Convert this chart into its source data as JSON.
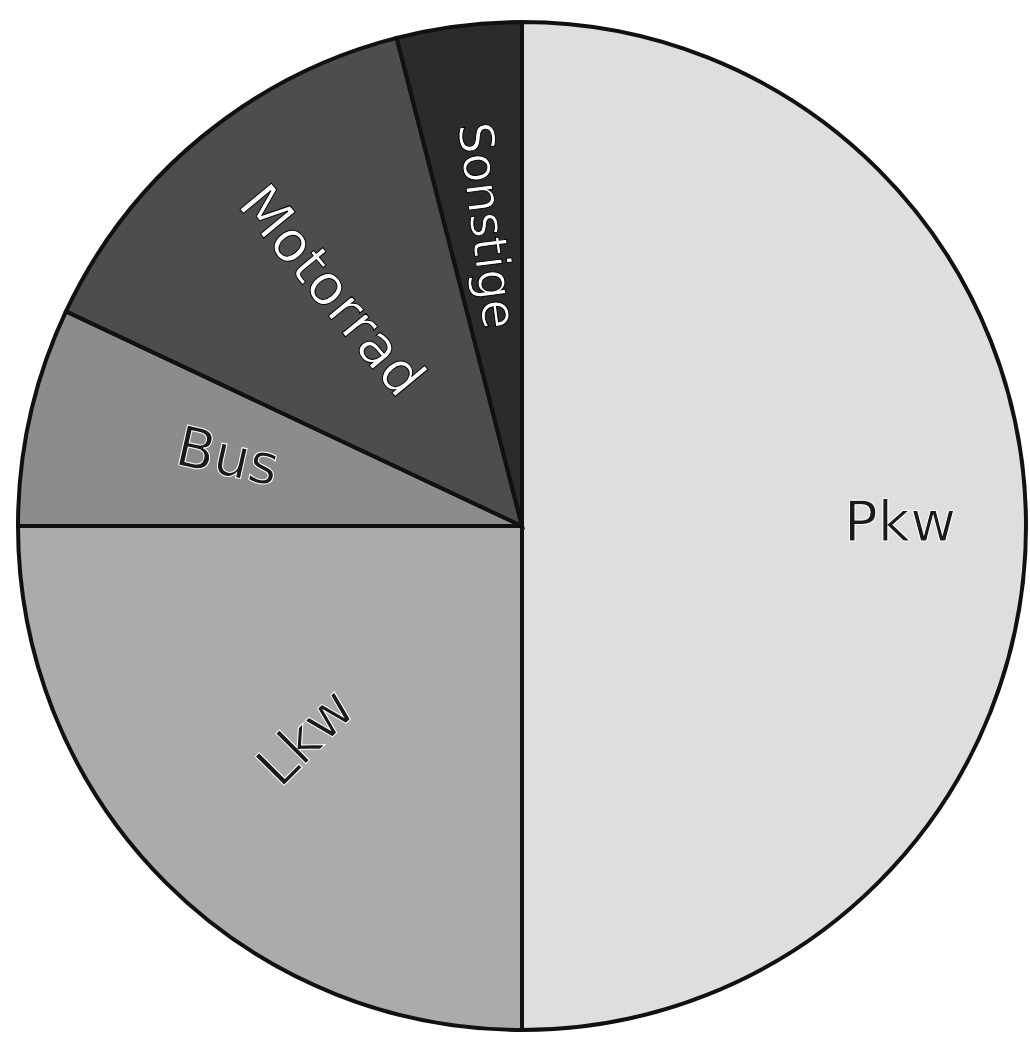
{
  "chart_data": {
    "type": "pie",
    "categories": [
      "Pkw",
      "Lkw",
      "Bus",
      "Motorrad",
      "Sonstige"
    ],
    "values": [
      50,
      25,
      7,
      14,
      4
    ],
    "colors": [
      "#dedede",
      "#ababab",
      "#8c8c8c",
      "#4d4d4d",
      "#2b2b2b"
    ]
  }
}
